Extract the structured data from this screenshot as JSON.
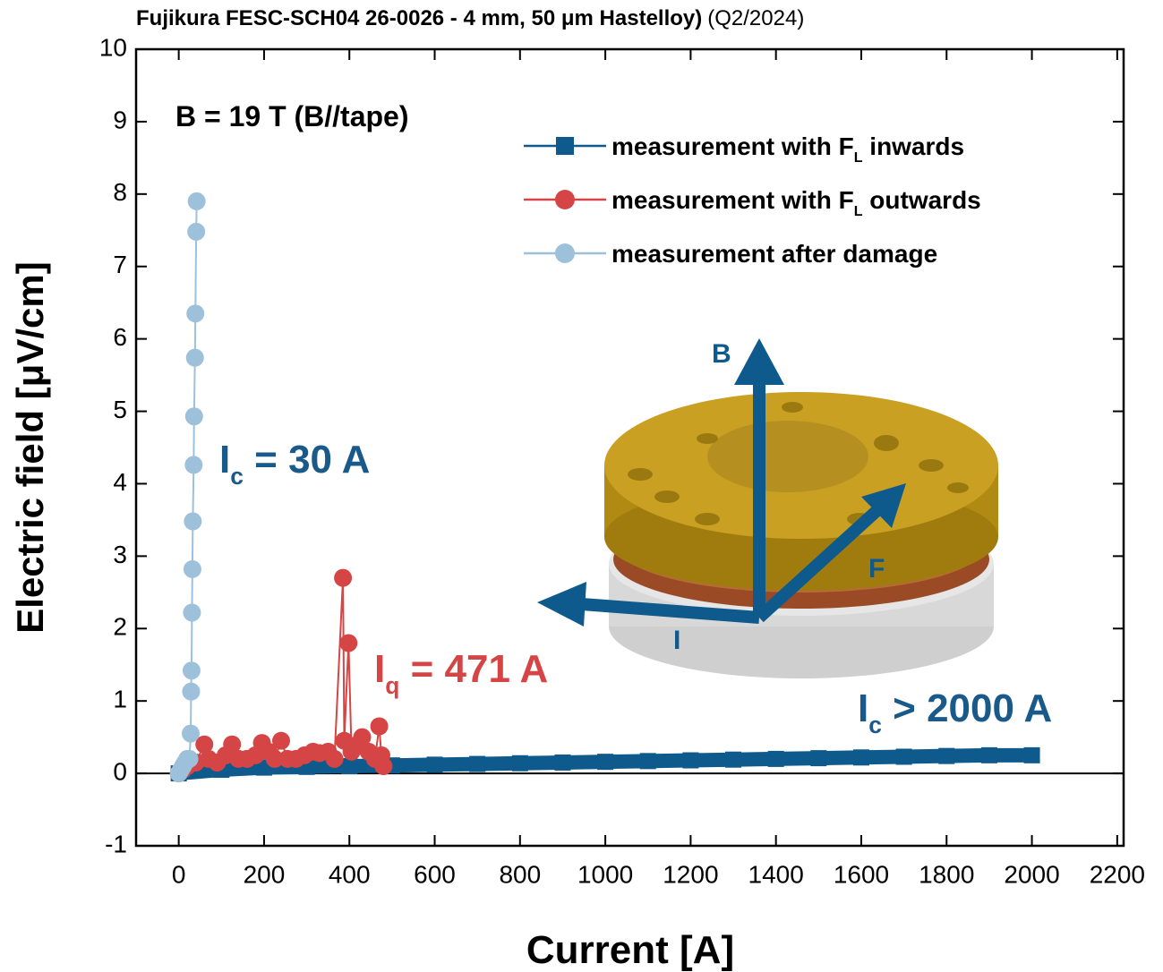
{
  "chart_data": {
    "type": "line",
    "title": "Fujikura FESC-SCH04 26-0026 - 4 mm, 50 μm Hastelloy)",
    "subtitle": "(Q2/2024)",
    "x_label": "Current [A]",
    "y_label": "Electric field [μV/cm]",
    "xlim": [
      -100,
      2215
    ],
    "ylim": [
      -1,
      10
    ],
    "xticks": [
      0,
      200,
      400,
      600,
      800,
      1000,
      1200,
      1400,
      1600,
      1800,
      2000,
      2200
    ],
    "yticks": [
      -1,
      0,
      1,
      2,
      3,
      4,
      5,
      6,
      7,
      8,
      9,
      10
    ],
    "legend": "upper right",
    "series": [
      {
        "name": "measurement with F",
        "name_sub": "L",
        "name_rest": " inwards",
        "color": "#0f5a8d",
        "marker": "square",
        "x": [
          0,
          100,
          200,
          300,
          400,
          500,
          600,
          700,
          800,
          900,
          1000,
          1100,
          1200,
          1300,
          1400,
          1500,
          1600,
          1700,
          1800,
          1900,
          2000
        ],
        "values": [
          0.0,
          0.05,
          0.08,
          0.09,
          0.1,
          0.11,
          0.12,
          0.13,
          0.14,
          0.15,
          0.16,
          0.17,
          0.18,
          0.19,
          0.2,
          0.21,
          0.22,
          0.23,
          0.24,
          0.25,
          0.25
        ]
      },
      {
        "name": "measurement with F",
        "name_sub": "L",
        "name_rest": " outwards",
        "color": "#d64545",
        "marker": "circle",
        "x": [
          0,
          10,
          20,
          40,
          60,
          70,
          90,
          110,
          125,
          140,
          160,
          180,
          195,
          210,
          225,
          240,
          255,
          275,
          295,
          315,
          330,
          350,
          365,
          385,
          388,
          398,
          405,
          420,
          430,
          445,
          460,
          470,
          475,
          480
        ],
        "values": [
          0.0,
          0.05,
          0.1,
          0.15,
          0.4,
          0.2,
          0.15,
          0.25,
          0.4,
          0.2,
          0.2,
          0.25,
          0.42,
          0.3,
          0.2,
          0.45,
          0.2,
          0.2,
          0.25,
          0.3,
          0.28,
          0.3,
          0.2,
          2.7,
          0.45,
          1.8,
          0.3,
          0.4,
          0.5,
          0.3,
          0.2,
          0.65,
          0.25,
          0.1
        ]
      },
      {
        "name": "measurement after damage",
        "color": "#9dc0db",
        "marker": "circle",
        "x": [
          0,
          5,
          10,
          15,
          20,
          25,
          28,
          29,
          30,
          31,
          32,
          33,
          35,
          36,
          38,
          39,
          41,
          42
        ],
        "values": [
          0.0,
          0.05,
          0.1,
          0.15,
          0.2,
          0.2,
          0.55,
          1.13,
          1.42,
          2.22,
          2.82,
          3.48,
          4.26,
          4.93,
          5.74,
          6.35,
          7.48,
          7.9
        ]
      }
    ],
    "annotations": [
      {
        "text": "B = 19 T (B//tape)",
        "color": "#000000"
      },
      {
        "text": "I",
        "sub": "c",
        "rest": " = 30 A",
        "color": "#1a5a8a"
      },
      {
        "text": "I",
        "sub": "q",
        "rest": " = 471 A",
        "color": "#d64545"
      },
      {
        "text": "I",
        "sub": "c",
        "rest": " > 2000 A",
        "color": "#1a5a8a"
      }
    ],
    "inset_labels": [
      "B",
      "F",
      "I"
    ]
  }
}
